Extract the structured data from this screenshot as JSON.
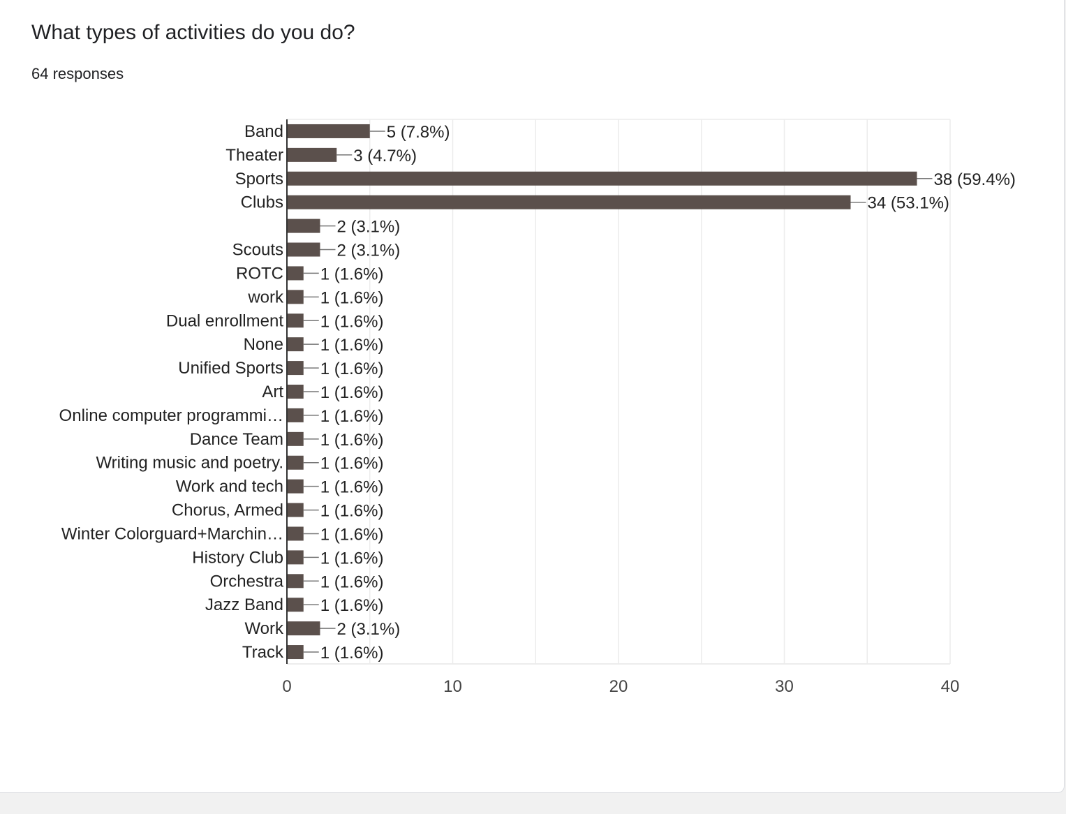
{
  "header": {
    "title": "What types of activities do you do?",
    "responses": "64 responses"
  },
  "colors": {
    "bar": "#5b504c",
    "grid": "#ececec",
    "axis": "#333333"
  },
  "chart_data": {
    "type": "bar",
    "orientation": "horizontal",
    "title": "What types of activities do you do?",
    "subtitle": "64 responses",
    "categories": [
      "Band",
      "Theater",
      "Sports",
      "Clubs",
      "",
      "Scouts",
      "ROTC",
      "work",
      "Dual enrollment",
      "None",
      "Unified Sports",
      "Art",
      "Online computer programmi…",
      "Dance Team",
      "Writing music and poetry.",
      "Work and tech",
      "Chorus, Armed",
      "Winter Colorguard+Marchin…",
      "History Club",
      "Orchestra",
      "Jazz Band",
      "Work",
      "Track"
    ],
    "values": [
      5,
      3,
      38,
      34,
      2,
      2,
      1,
      1,
      1,
      1,
      1,
      1,
      1,
      1,
      1,
      1,
      1,
      1,
      1,
      1,
      1,
      2,
      1
    ],
    "value_labels": [
      "5 (7.8%)",
      "3 (4.7%)",
      "38 (59.4%)",
      "34 (53.1%)",
      "2 (3.1%)",
      "2 (3.1%)",
      "1 (1.6%)",
      "1 (1.6%)",
      "1 (1.6%)",
      "1 (1.6%)",
      "1 (1.6%)",
      "1 (1.6%)",
      "1 (1.6%)",
      "1 (1.6%)",
      "1 (1.6%)",
      "1 (1.6%)",
      "1 (1.6%)",
      "1 (1.6%)",
      "1 (1.6%)",
      "1 (1.6%)",
      "1 (1.6%)",
      "2 (3.1%)",
      "1 (1.6%)"
    ],
    "xlim": [
      0,
      40
    ],
    "xticks": [
      "0",
      "10",
      "20",
      "30",
      "40"
    ],
    "xtick_values": [
      0,
      10,
      20,
      30,
      40
    ],
    "grid": true,
    "legend": "none"
  }
}
